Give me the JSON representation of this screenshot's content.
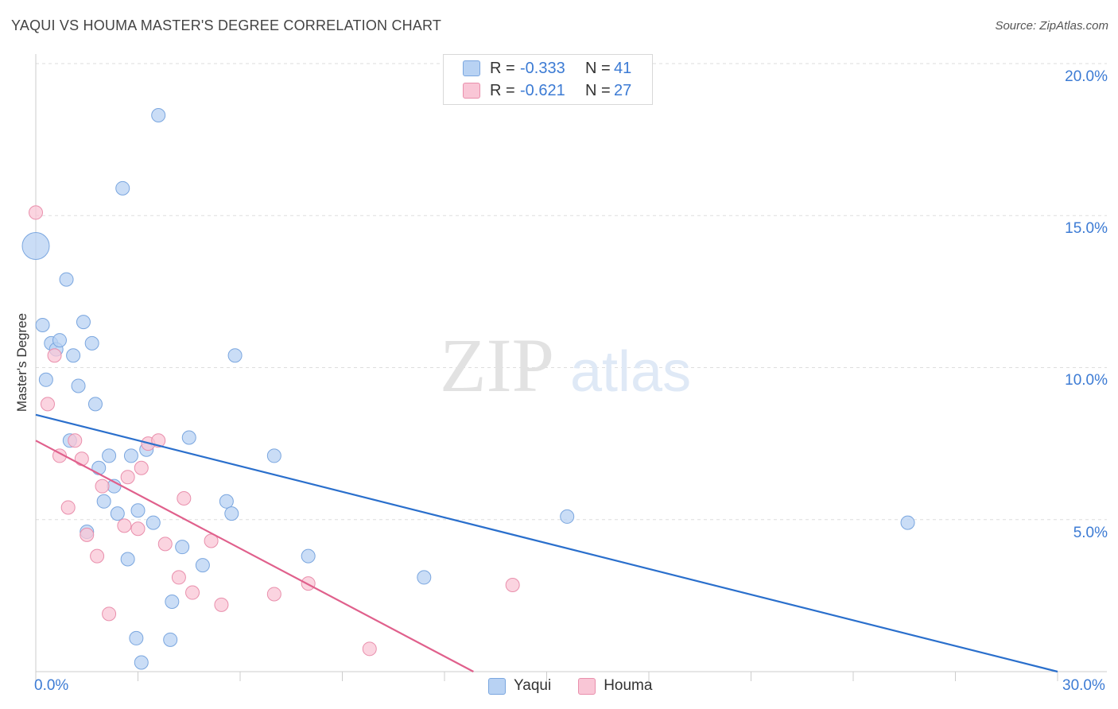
{
  "header": {
    "title": "YAQUI VS HOUMA MASTER'S DEGREE CORRELATION CHART",
    "source": "Source: ZipAtlas.com"
  },
  "watermark": {
    "zip": "ZIP",
    "atlas": "atlas"
  },
  "legend": {
    "r_label": "R =",
    "n_label": "N =",
    "series": [
      {
        "name": "Yaqui",
        "r": "-0.333",
        "n": "41"
      },
      {
        "name": "Houma",
        "r": "-0.621",
        "n": "27"
      }
    ]
  },
  "colors": {
    "yaqui_fill": "#b8d2f3",
    "yaqui_stroke": "#7aa6df",
    "yaqui_line": "#2a6fcc",
    "houma_fill": "#f9c6d6",
    "houma_stroke": "#e98fac",
    "houma_line": "#e0608c",
    "tick_text": "#3c7bd4"
  },
  "chart_data": {
    "type": "scatter",
    "title": "YAQUI VS HOUMA MASTER'S DEGREE CORRELATION CHART",
    "xlabel": "",
    "ylabel": "Master's Degree",
    "xlim": [
      0,
      30
    ],
    "ylim": [
      0,
      20
    ],
    "x_tick_labels": [
      "0.0%",
      "30.0%"
    ],
    "y_ticks": [
      5,
      10,
      15,
      20
    ],
    "y_tick_labels": [
      "5.0%",
      "10.0%",
      "15.0%",
      "20.0%"
    ],
    "grid": true,
    "series": [
      {
        "name": "Yaqui",
        "points": [
          {
            "x": 0.0,
            "y": 14.0,
            "size": "large"
          },
          {
            "x": 0.2,
            "y": 11.4
          },
          {
            "x": 0.3,
            "y": 9.6
          },
          {
            "x": 0.45,
            "y": 10.8
          },
          {
            "x": 0.6,
            "y": 10.6
          },
          {
            "x": 0.7,
            "y": 10.9
          },
          {
            "x": 0.9,
            "y": 12.9
          },
          {
            "x": 1.0,
            "y": 7.6
          },
          {
            "x": 1.1,
            "y": 10.4
          },
          {
            "x": 1.25,
            "y": 9.4
          },
          {
            "x": 1.4,
            "y": 11.5
          },
          {
            "x": 1.5,
            "y": 4.6
          },
          {
            "x": 1.65,
            "y": 10.8
          },
          {
            "x": 1.75,
            "y": 8.8
          },
          {
            "x": 1.85,
            "y": 6.7
          },
          {
            "x": 2.0,
            "y": 5.6
          },
          {
            "x": 2.15,
            "y": 7.1
          },
          {
            "x": 2.3,
            "y": 6.1
          },
          {
            "x": 2.4,
            "y": 5.2
          },
          {
            "x": 2.55,
            "y": 15.9
          },
          {
            "x": 2.7,
            "y": 3.7
          },
          {
            "x": 2.8,
            "y": 7.1
          },
          {
            "x": 2.95,
            "y": 1.1
          },
          {
            "x": 3.0,
            "y": 5.3
          },
          {
            "x": 3.1,
            "y": 0.3
          },
          {
            "x": 3.25,
            "y": 7.3
          },
          {
            "x": 3.45,
            "y": 4.9
          },
          {
            "x": 3.6,
            "y": 18.3
          },
          {
            "x": 3.95,
            "y": 1.05
          },
          {
            "x": 4.0,
            "y": 2.3
          },
          {
            "x": 4.3,
            "y": 4.1
          },
          {
            "x": 4.5,
            "y": 7.7
          },
          {
            "x": 4.9,
            "y": 3.5
          },
          {
            "x": 5.6,
            "y": 5.6
          },
          {
            "x": 5.75,
            "y": 5.2
          },
          {
            "x": 5.85,
            "y": 10.4
          },
          {
            "x": 7.0,
            "y": 7.1
          },
          {
            "x": 8.0,
            "y": 3.8
          },
          {
            "x": 11.4,
            "y": 3.1
          },
          {
            "x": 15.6,
            "y": 5.1
          },
          {
            "x": 25.6,
            "y": 4.9
          }
        ],
        "trend": {
          "x": [
            0,
            30
          ],
          "y": [
            8.45,
            0.0
          ]
        }
      },
      {
        "name": "Houma",
        "points": [
          {
            "x": 0.0,
            "y": 15.1
          },
          {
            "x": 0.35,
            "y": 8.8
          },
          {
            "x": 0.55,
            "y": 10.4
          },
          {
            "x": 0.7,
            "y": 7.1
          },
          {
            "x": 0.95,
            "y": 5.4
          },
          {
            "x": 1.15,
            "y": 7.6
          },
          {
            "x": 1.35,
            "y": 7.0
          },
          {
            "x": 1.5,
            "y": 4.5
          },
          {
            "x": 1.8,
            "y": 3.8
          },
          {
            "x": 1.95,
            "y": 6.1
          },
          {
            "x": 2.15,
            "y": 1.9
          },
          {
            "x": 2.6,
            "y": 4.8
          },
          {
            "x": 2.7,
            "y": 6.4
          },
          {
            "x": 3.0,
            "y": 4.7
          },
          {
            "x": 3.1,
            "y": 6.7
          },
          {
            "x": 3.3,
            "y": 7.5
          },
          {
            "x": 3.6,
            "y": 7.6
          },
          {
            "x": 3.8,
            "y": 4.2
          },
          {
            "x": 4.2,
            "y": 3.1
          },
          {
            "x": 4.35,
            "y": 5.7
          },
          {
            "x": 4.6,
            "y": 2.6
          },
          {
            "x": 5.15,
            "y": 4.3
          },
          {
            "x": 5.45,
            "y": 2.2
          },
          {
            "x": 7.0,
            "y": 2.55
          },
          {
            "x": 8.0,
            "y": 2.9
          },
          {
            "x": 9.8,
            "y": 0.75
          },
          {
            "x": 14.0,
            "y": 2.85
          }
        ],
        "trend": {
          "x": [
            0,
            12.85
          ],
          "y": [
            7.6,
            0.0
          ]
        }
      }
    ]
  },
  "bottom_legend": [
    "Yaqui",
    "Houma"
  ]
}
